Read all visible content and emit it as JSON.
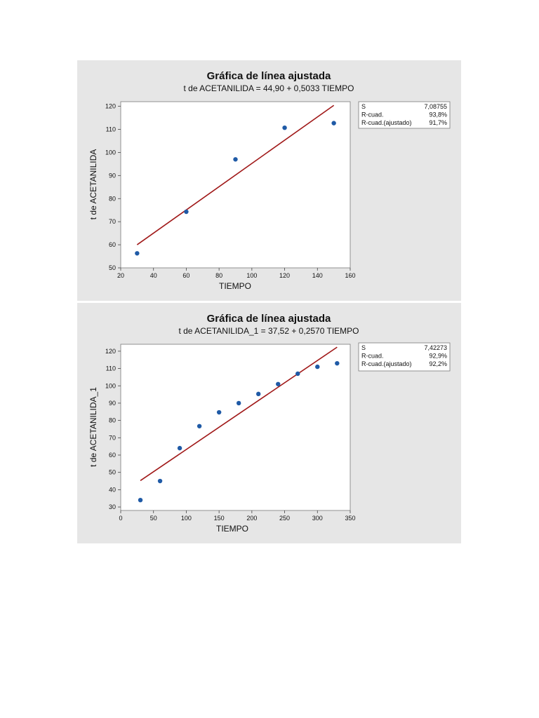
{
  "chart_data": [
    {
      "type": "scatter",
      "title": "Gráfica de línea ajustada",
      "subtitle": "t de ACETANILIDA = 44,90 + 0,5033 TIEMPO",
      "xlabel": "TIEMPO",
      "ylabel": "t de ACETANILIDA",
      "xlim": [
        20,
        160
      ],
      "ylim": [
        50,
        122
      ],
      "xticks": [
        20,
        40,
        60,
        80,
        100,
        120,
        140,
        160
      ],
      "yticks": [
        50,
        60,
        70,
        80,
        90,
        100,
        110,
        120
      ],
      "points": {
        "x": [
          30,
          60,
          90,
          120,
          150
        ],
        "y": [
          56.3,
          74.3,
          97.0,
          110.7,
          112.7
        ]
      },
      "fit": {
        "intercept": 44.9,
        "slope": 0.5033,
        "x_range": [
          30,
          150
        ],
        "color": "#a01818"
      },
      "point_color": "#1f5aa6",
      "stats": [
        {
          "label": "S",
          "value": "7,08755"
        },
        {
          "label": "R-cuad.",
          "value": "93,8%"
        },
        {
          "label": "R-cuad.(ajustado)",
          "value": "91,7%"
        }
      ]
    },
    {
      "type": "scatter",
      "title": "Gráfica de línea ajustada",
      "subtitle": "t de ACETANILIDA_1 = 37,52 + 0,2570 TIEMPO",
      "xlabel": "TIEMPO",
      "ylabel": "t de ACETANILIDA_1",
      "xlim": [
        0,
        350
      ],
      "ylim": [
        28,
        124
      ],
      "xticks": [
        0,
        50,
        100,
        150,
        200,
        250,
        300,
        350
      ],
      "yticks": [
        30,
        40,
        50,
        60,
        70,
        80,
        90,
        100,
        110,
        120
      ],
      "points": {
        "x": [
          30,
          60,
          90,
          120,
          150,
          180,
          210,
          240,
          270,
          300,
          330
        ],
        "y": [
          34.0,
          45.0,
          64.0,
          76.7,
          84.7,
          90.0,
          95.3,
          101.0,
          107.0,
          111.0,
          113.0
        ]
      },
      "fit": {
        "intercept": 37.52,
        "slope": 0.257,
        "x_range": [
          30,
          330
        ],
        "color": "#a01818"
      },
      "point_color": "#1f5aa6",
      "stats": [
        {
          "label": "S",
          "value": "7,42273"
        },
        {
          "label": "R-cuad.",
          "value": "92,9%"
        },
        {
          "label": "R-cuad.(ajustado)",
          "value": "92,2%"
        }
      ]
    }
  ]
}
